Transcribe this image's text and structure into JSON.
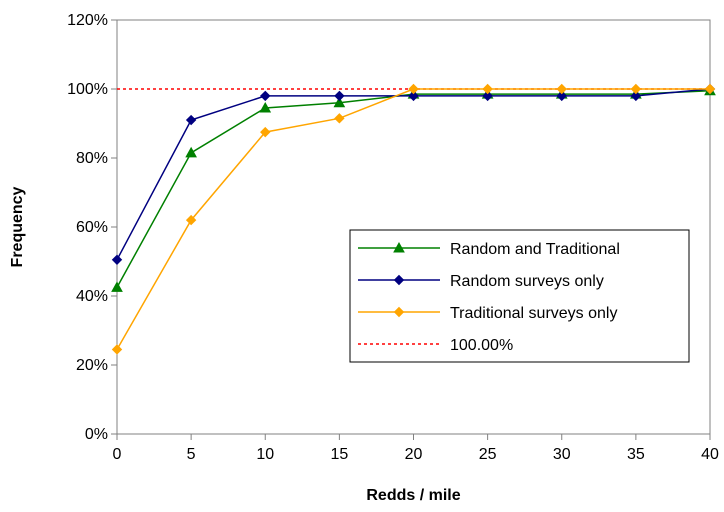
{
  "chart_data": {
    "type": "line",
    "xlabel": "Redds / mile",
    "ylabel": "Frequency",
    "x": [
      0,
      5,
      10,
      15,
      20,
      25,
      30,
      35,
      40
    ],
    "xlim": [
      0,
      40
    ],
    "ylim": [
      0,
      120
    ],
    "xticks": [
      "0",
      "5",
      "10",
      "15",
      "20",
      "25",
      "30",
      "35",
      "40"
    ],
    "yticks": [
      "0%",
      "20%",
      "40%",
      "60%",
      "80%",
      "100%",
      "120%"
    ],
    "grid": false,
    "legend_position": "center-right",
    "series": [
      {
        "name": "Random and Traditional",
        "color": "#008000",
        "marker": "triangle",
        "values": [
          42.5,
          81.5,
          94.5,
          96.0,
          98.5,
          98.5,
          98.5,
          98.5,
          99.5
        ]
      },
      {
        "name": "Random surveys only",
        "color": "#000080",
        "marker": "diamond",
        "values": [
          50.5,
          91.0,
          98.0,
          98.0,
          98.0,
          98.0,
          98.0,
          98.0,
          100.0
        ]
      },
      {
        "name": "Traditional surveys only",
        "color": "#FFA500",
        "marker": "diamond",
        "values": [
          24.5,
          62.0,
          87.5,
          91.5,
          100.0,
          100.0,
          100.0,
          100.0,
          100.0
        ]
      }
    ],
    "reference_line": {
      "name": "100.00%",
      "value": 100,
      "color": "#FF0000",
      "style": "dotted"
    }
  }
}
